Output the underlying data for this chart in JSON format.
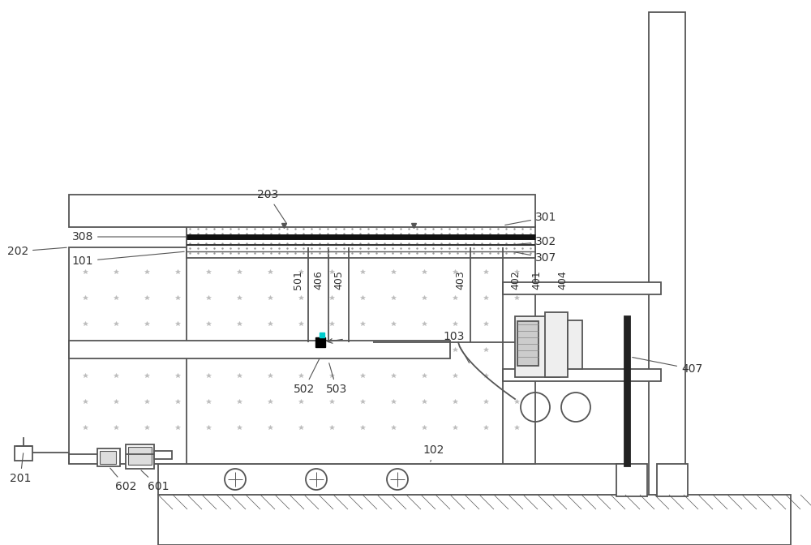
{
  "bg_color": "#ffffff",
  "lc": "#555555",
  "lc_dark": "#222222",
  "label_color": "#333333",
  "fig_width": 10.0,
  "fig_height": 6.72,
  "dpi": 100
}
